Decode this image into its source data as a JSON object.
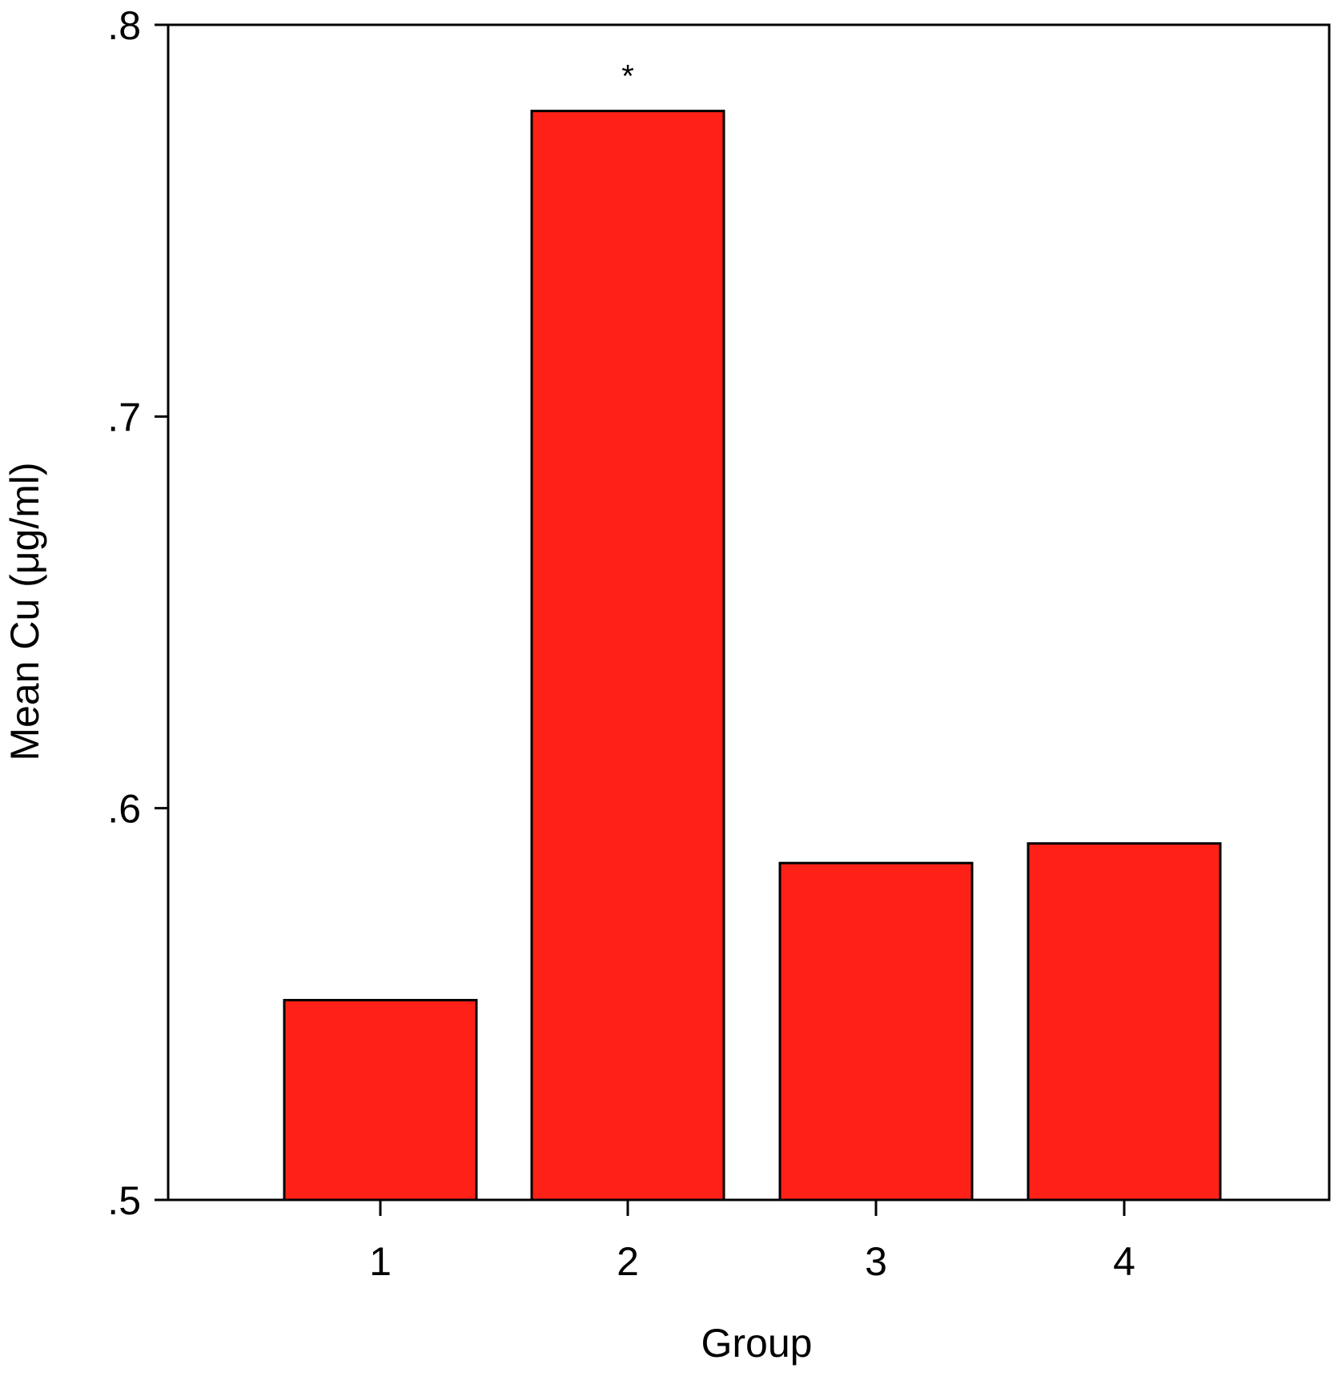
{
  "chart_data": {
    "type": "bar",
    "categories": [
      "1",
      "2",
      "3",
      "4"
    ],
    "values": [
      0.551,
      0.778,
      0.586,
      0.591
    ],
    "xlabel": "Group",
    "ylabel": "Mean Cu (μg/ml)",
    "ylim": [
      0.5,
      0.8
    ],
    "yticks": [
      ".5",
      ".6",
      ".7",
      ".8"
    ],
    "yticks_values": [
      0.5,
      0.6,
      0.7,
      0.8
    ],
    "grid": false,
    "bar_color": "#ff2117",
    "bar_edge_color": "#000000",
    "annotations": [
      {
        "category": "2",
        "text": "*"
      }
    ]
  }
}
